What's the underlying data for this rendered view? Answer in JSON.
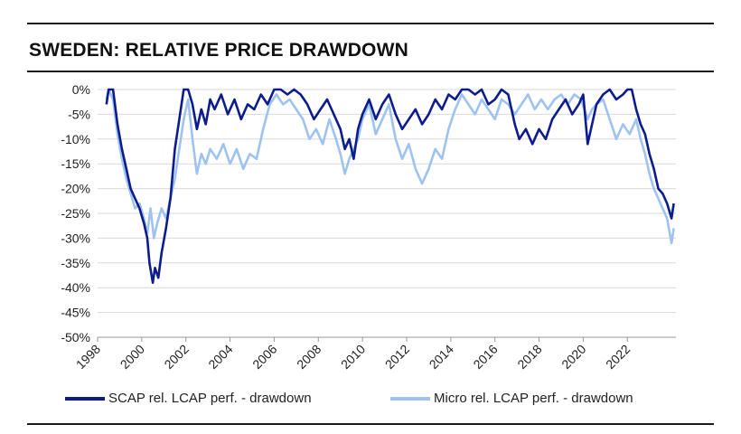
{
  "chart_data": {
    "type": "line",
    "title": "SWEDEN: RELATIVE PRICE DRAWDOWN",
    "xlabel": "",
    "ylabel": "",
    "xlim": [
      1998,
      2024.2
    ],
    "ylim": [
      -50,
      0
    ],
    "x_ticks": [
      1998,
      2000,
      2002,
      2004,
      2006,
      2008,
      2010,
      2012,
      2014,
      2016,
      2018,
      2020,
      2022
    ],
    "x_tick_labels": [
      "1998",
      "2000",
      "2002",
      "2004",
      "2006",
      "2008",
      "2010",
      "2012",
      "2014",
      "2016",
      "2018",
      "2020",
      "2022"
    ],
    "y_ticks": [
      0,
      -5,
      -10,
      -15,
      -20,
      -25,
      -30,
      -35,
      -40,
      -45,
      -50
    ],
    "y_tick_labels": [
      "0%",
      "-5%",
      "-10%",
      "-15%",
      "-20%",
      "-25%",
      "-30%",
      "-35%",
      "-40%",
      "-45%",
      "-50%"
    ],
    "grid": "horizontal",
    "legend_position": "bottom",
    "series": [
      {
        "name": "SCAP rel. LCAP perf. - drawdown",
        "color": "#0d1c8c",
        "points": [
          [
            1998.4,
            -3
          ],
          [
            1998.5,
            0
          ],
          [
            1998.7,
            0
          ],
          [
            1998.9,
            -7
          ],
          [
            1999.1,
            -12
          ],
          [
            1999.3,
            -16
          ],
          [
            1999.5,
            -20
          ],
          [
            1999.7,
            -22
          ],
          [
            1999.9,
            -24
          ],
          [
            2000.1,
            -27
          ],
          [
            2000.25,
            -30
          ],
          [
            2000.35,
            -35
          ],
          [
            2000.5,
            -39
          ],
          [
            2000.6,
            -36
          ],
          [
            2000.75,
            -38
          ],
          [
            2000.9,
            -33
          ],
          [
            2001.1,
            -28
          ],
          [
            2001.3,
            -22
          ],
          [
            2001.5,
            -12
          ],
          [
            2001.7,
            -6
          ],
          [
            2001.9,
            0
          ],
          [
            2002.1,
            0
          ],
          [
            2002.3,
            -3
          ],
          [
            2002.5,
            -8
          ],
          [
            2002.7,
            -4
          ],
          [
            2002.9,
            -7
          ],
          [
            2003.1,
            -2
          ],
          [
            2003.3,
            -4
          ],
          [
            2003.6,
            -1
          ],
          [
            2003.9,
            -5
          ],
          [
            2004.2,
            -2
          ],
          [
            2004.5,
            -6
          ],
          [
            2004.8,
            -3
          ],
          [
            2005.1,
            -4
          ],
          [
            2005.4,
            -1
          ],
          [
            2005.7,
            -3
          ],
          [
            2006.0,
            0
          ],
          [
            2006.3,
            0
          ],
          [
            2006.6,
            -1
          ],
          [
            2006.9,
            0
          ],
          [
            2007.2,
            -1
          ],
          [
            2007.5,
            -3
          ],
          [
            2007.8,
            -6
          ],
          [
            2008.1,
            -4
          ],
          [
            2008.4,
            -2
          ],
          [
            2008.7,
            -5
          ],
          [
            2009.0,
            -8
          ],
          [
            2009.2,
            -12
          ],
          [
            2009.4,
            -10
          ],
          [
            2009.6,
            -14
          ],
          [
            2009.8,
            -8
          ],
          [
            2010.0,
            -5
          ],
          [
            2010.3,
            -2
          ],
          [
            2010.6,
            -6
          ],
          [
            2010.9,
            -3
          ],
          [
            2011.2,
            -1
          ],
          [
            2011.5,
            -5
          ],
          [
            2011.8,
            -8
          ],
          [
            2012.1,
            -6
          ],
          [
            2012.4,
            -4
          ],
          [
            2012.7,
            -7
          ],
          [
            2013.0,
            -5
          ],
          [
            2013.3,
            -2
          ],
          [
            2013.6,
            -4
          ],
          [
            2013.9,
            -1
          ],
          [
            2014.2,
            -2
          ],
          [
            2014.5,
            0
          ],
          [
            2014.8,
            0
          ],
          [
            2015.1,
            -1
          ],
          [
            2015.4,
            0
          ],
          [
            2015.7,
            -3
          ],
          [
            2016.0,
            -2
          ],
          [
            2016.3,
            0
          ],
          [
            2016.6,
            -1
          ],
          [
            2016.9,
            -7
          ],
          [
            2017.1,
            -10
          ],
          [
            2017.4,
            -8
          ],
          [
            2017.7,
            -11
          ],
          [
            2018.0,
            -8
          ],
          [
            2018.3,
            -10
          ],
          [
            2018.6,
            -6
          ],
          [
            2018.9,
            -4
          ],
          [
            2019.2,
            -2
          ],
          [
            2019.5,
            -5
          ],
          [
            2019.8,
            -3
          ],
          [
            2020.0,
            -1
          ],
          [
            2020.2,
            -11
          ],
          [
            2020.4,
            -7
          ],
          [
            2020.6,
            -3
          ],
          [
            2020.9,
            -1
          ],
          [
            2021.2,
            0
          ],
          [
            2021.5,
            -2
          ],
          [
            2021.8,
            -1
          ],
          [
            2022.0,
            0
          ],
          [
            2022.2,
            0
          ],
          [
            2022.4,
            -4
          ],
          [
            2022.6,
            -7
          ],
          [
            2022.8,
            -9
          ],
          [
            2023.0,
            -13
          ],
          [
            2023.2,
            -16
          ],
          [
            2023.4,
            -20
          ],
          [
            2023.6,
            -21
          ],
          [
            2023.8,
            -23
          ],
          [
            2024.0,
            -26
          ],
          [
            2024.1,
            -23
          ]
        ]
      },
      {
        "name": "Micro rel. LCAP perf. - drawdown",
        "color": "#9ec3f0",
        "points": [
          [
            1998.4,
            -2
          ],
          [
            1998.5,
            0
          ],
          [
            1998.7,
            -2
          ],
          [
            1998.9,
            -9
          ],
          [
            1999.1,
            -14
          ],
          [
            1999.3,
            -18
          ],
          [
            1999.5,
            -21
          ],
          [
            1999.7,
            -24
          ],
          [
            1999.9,
            -23
          ],
          [
            2000.1,
            -26
          ],
          [
            2000.25,
            -29
          ],
          [
            2000.4,
            -24
          ],
          [
            2000.55,
            -30
          ],
          [
            2000.7,
            -27
          ],
          [
            2000.9,
            -24
          ],
          [
            2001.1,
            -26
          ],
          [
            2001.3,
            -22
          ],
          [
            2001.5,
            -18
          ],
          [
            2001.7,
            -12
          ],
          [
            2001.9,
            -6
          ],
          [
            2002.1,
            -2
          ],
          [
            2002.3,
            -10
          ],
          [
            2002.5,
            -17
          ],
          [
            2002.7,
            -13
          ],
          [
            2002.9,
            -15
          ],
          [
            2003.1,
            -12
          ],
          [
            2003.4,
            -14
          ],
          [
            2003.7,
            -11
          ],
          [
            2004.0,
            -15
          ],
          [
            2004.3,
            -12
          ],
          [
            2004.6,
            -16
          ],
          [
            2004.9,
            -13
          ],
          [
            2005.2,
            -14
          ],
          [
            2005.5,
            -8
          ],
          [
            2005.8,
            -3
          ],
          [
            2006.1,
            -1
          ],
          [
            2006.4,
            -3
          ],
          [
            2006.7,
            -2
          ],
          [
            2007.0,
            -4
          ],
          [
            2007.3,
            -6
          ],
          [
            2007.6,
            -10
          ],
          [
            2007.9,
            -8
          ],
          [
            2008.2,
            -11
          ],
          [
            2008.5,
            -6
          ],
          [
            2008.8,
            -10
          ],
          [
            2009.0,
            -13
          ],
          [
            2009.2,
            -17
          ],
          [
            2009.4,
            -14
          ],
          [
            2009.6,
            -12
          ],
          [
            2009.8,
            -10
          ],
          [
            2010.0,
            -6
          ],
          [
            2010.3,
            -3
          ],
          [
            2010.6,
            -9
          ],
          [
            2010.9,
            -6
          ],
          [
            2011.2,
            -3
          ],
          [
            2011.5,
            -10
          ],
          [
            2011.8,
            -14
          ],
          [
            2012.1,
            -11
          ],
          [
            2012.4,
            -16
          ],
          [
            2012.7,
            -19
          ],
          [
            2013.0,
            -16
          ],
          [
            2013.3,
            -12
          ],
          [
            2013.6,
            -14
          ],
          [
            2013.9,
            -8
          ],
          [
            2014.2,
            -4
          ],
          [
            2014.5,
            -1
          ],
          [
            2014.8,
            -3
          ],
          [
            2015.1,
            -5
          ],
          [
            2015.4,
            -2
          ],
          [
            2015.7,
            -4
          ],
          [
            2016.0,
            -6
          ],
          [
            2016.3,
            -2
          ],
          [
            2016.6,
            -3
          ],
          [
            2016.9,
            -5
          ],
          [
            2017.2,
            -3
          ],
          [
            2017.5,
            -1
          ],
          [
            2017.8,
            -4
          ],
          [
            2018.1,
            -2
          ],
          [
            2018.4,
            -4
          ],
          [
            2018.7,
            -2
          ],
          [
            2019.0,
            -1
          ],
          [
            2019.3,
            -3
          ],
          [
            2019.6,
            -1
          ],
          [
            2019.9,
            -2
          ],
          [
            2020.2,
            -6
          ],
          [
            2020.4,
            -4
          ],
          [
            2020.6,
            -3
          ],
          [
            2020.9,
            -2
          ],
          [
            2021.2,
            -6
          ],
          [
            2021.5,
            -10
          ],
          [
            2021.8,
            -7
          ],
          [
            2022.1,
            -9
          ],
          [
            2022.4,
            -6
          ],
          [
            2022.6,
            -10
          ],
          [
            2022.8,
            -13
          ],
          [
            2023.0,
            -17
          ],
          [
            2023.2,
            -20
          ],
          [
            2023.4,
            -22
          ],
          [
            2023.6,
            -24
          ],
          [
            2023.8,
            -26
          ],
          [
            2024.0,
            -31
          ],
          [
            2024.1,
            -28
          ]
        ]
      }
    ]
  }
}
